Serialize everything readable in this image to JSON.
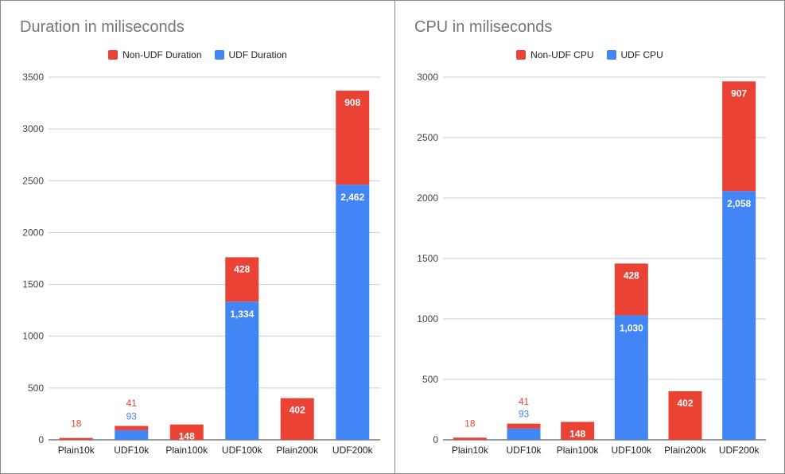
{
  "colors": {
    "udf": "#4285f4",
    "non_udf": "#ea4335",
    "grid": "#cccccc",
    "axis_text": "#444444",
    "title": "#757575"
  },
  "chart_data": [
    {
      "type": "bar",
      "stacked": true,
      "title": "Duration in miliseconds",
      "categories": [
        "Plain10k",
        "UDF10k",
        "Plain100k",
        "UDF100k",
        "Plain200k",
        "UDF200k"
      ],
      "series": [
        {
          "name": "UDF Duration",
          "color": "#4285f4",
          "values": [
            0,
            93,
            0,
            1334,
            0,
            2462
          ],
          "labels": [
            "",
            "93",
            "",
            "1,334",
            "",
            "2,462"
          ]
        },
        {
          "name": "Non-UDF Duration",
          "color": "#ea4335",
          "values": [
            18,
            41,
            148,
            428,
            402,
            908
          ],
          "labels": [
            "18",
            "41",
            "148",
            "428",
            "402",
            "908"
          ]
        }
      ],
      "legend_order": [
        "Non-UDF Duration",
        "UDF Duration"
      ],
      "legend_position": "top-center",
      "ylim": [
        0,
        3500
      ],
      "yticks": [
        "0",
        "500",
        "1000",
        "1500",
        "2000",
        "2500",
        "3000",
        "3500"
      ],
      "grid": true,
      "xlabel": "",
      "ylabel": ""
    },
    {
      "type": "bar",
      "stacked": true,
      "title": "CPU in miliseconds",
      "categories": [
        "Plain10k",
        "UDF10k",
        "Plain100k",
        "UDF100k",
        "Plain200k",
        "UDF200k"
      ],
      "series": [
        {
          "name": "UDF CPU",
          "color": "#4285f4",
          "values": [
            0,
            93,
            0,
            1030,
            0,
            2058
          ],
          "labels": [
            "",
            "93",
            "",
            "1,030",
            "",
            "2,058"
          ]
        },
        {
          "name": "Non-UDF CPU",
          "color": "#ea4335",
          "values": [
            18,
            41,
            148,
            428,
            402,
            907
          ],
          "labels": [
            "18",
            "41",
            "148",
            "428",
            "402",
            "907"
          ]
        }
      ],
      "legend_order": [
        "Non-UDF CPU",
        "UDF CPU"
      ],
      "legend_position": "top-center",
      "ylim": [
        0,
        3000
      ],
      "yticks": [
        "0",
        "500",
        "1000",
        "1500",
        "2000",
        "2500",
        "3000"
      ],
      "grid": true,
      "xlabel": "",
      "ylabel": ""
    }
  ]
}
